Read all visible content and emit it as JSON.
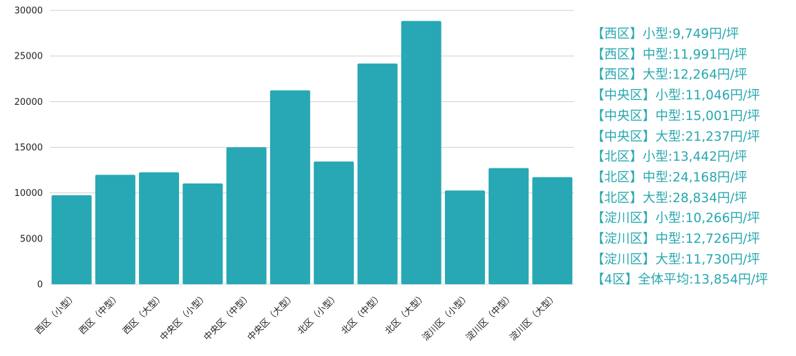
{
  "chart_data": {
    "type": "bar",
    "categories": [
      "西区（小型）",
      "西区（中型）",
      "西区（大型）",
      "中央区（小型）",
      "中央区（中型）",
      "中央区（大型）",
      "北区（小型）",
      "北区（中型）",
      "北区（大型）",
      "淀川区（小型）",
      "淀川区（中型）",
      "淀川区（大型）"
    ],
    "values": [
      9749,
      11991,
      12264,
      11046,
      15001,
      21237,
      13442,
      24168,
      28834,
      10266,
      12726,
      11730
    ],
    "title": "",
    "xlabel": "",
    "ylabel": "",
    "ylim": [
      0,
      30000
    ],
    "yticks": [
      0,
      5000,
      10000,
      15000,
      20000,
      25000,
      30000
    ],
    "grid": true,
    "bar_color": "#27a8b4",
    "grid_color": "#cfcfcf"
  },
  "annotations": {
    "color": "#27a8b0",
    "lines": [
      "【西区】小型:9,749円/坪",
      "【西区】中型:11,991円/坪",
      "【西区】大型:12,264円/坪",
      "【中央区】小型:11,046円/坪",
      "【中央区】中型:15,001円/坪",
      "【中央区】大型:21,237円/坪",
      "【北区】小型:13,442円/坪",
      "【北区】中型:24,168円/坪",
      "【北区】大型:28,834円/坪",
      "【淀川区】小型:10,266円/坪",
      "【淀川区】中型:12,726円/坪",
      "【淀川区】大型:11,730円/坪",
      "【4区】全体平均:13,854円/坪"
    ]
  }
}
